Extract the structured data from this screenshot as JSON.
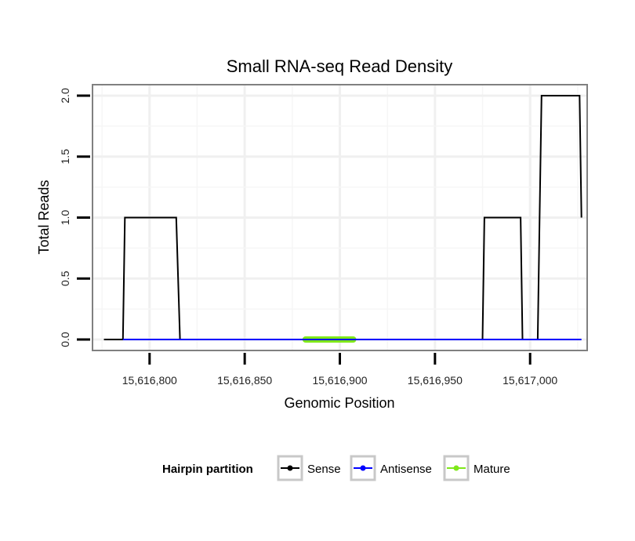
{
  "chart_data": {
    "type": "line",
    "title": "Small RNA-seq Read Density",
    "xlabel": "Genomic Position",
    "ylabel": "Total Reads",
    "xlim": [
      15616770,
      15617030
    ],
    "ylim": [
      -0.09,
      2.09
    ],
    "x_ticks": [
      15616800,
      15616850,
      15616900,
      15616950,
      15617000
    ],
    "x_tick_labels": [
      "15,616,800",
      "15,616,850",
      "15,616,900",
      "15,616,950",
      "15,617,000"
    ],
    "y_ticks": [
      0.0,
      0.5,
      1.0,
      1.5,
      2.0
    ],
    "y_tick_labels": [
      "0.0",
      "0.5",
      "1.0",
      "1.5",
      "2.0"
    ],
    "grid": true,
    "legend_position": "bottom",
    "legend_title": "Hairpin partition",
    "series": [
      {
        "name": "Sense",
        "color": "#000000",
        "x": [
          15616776,
          15616786,
          15616787,
          15616814,
          15616816,
          15616975,
          15616976,
          15616995,
          15616996,
          15617004,
          15617005,
          15617006,
          15617026,
          15617027
        ],
        "y": [
          0,
          0,
          1,
          1,
          0,
          0,
          1,
          1,
          0,
          0,
          1,
          2,
          2,
          1
        ]
      },
      {
        "name": "Antisense",
        "color": "#0000ff",
        "x": [
          15616786,
          15617027
        ],
        "y": [
          0,
          0
        ]
      },
      {
        "name": "Mature",
        "color": "#7fe81a",
        "x": [
          15616882,
          15616907
        ],
        "y": [
          0,
          0
        ]
      }
    ]
  }
}
